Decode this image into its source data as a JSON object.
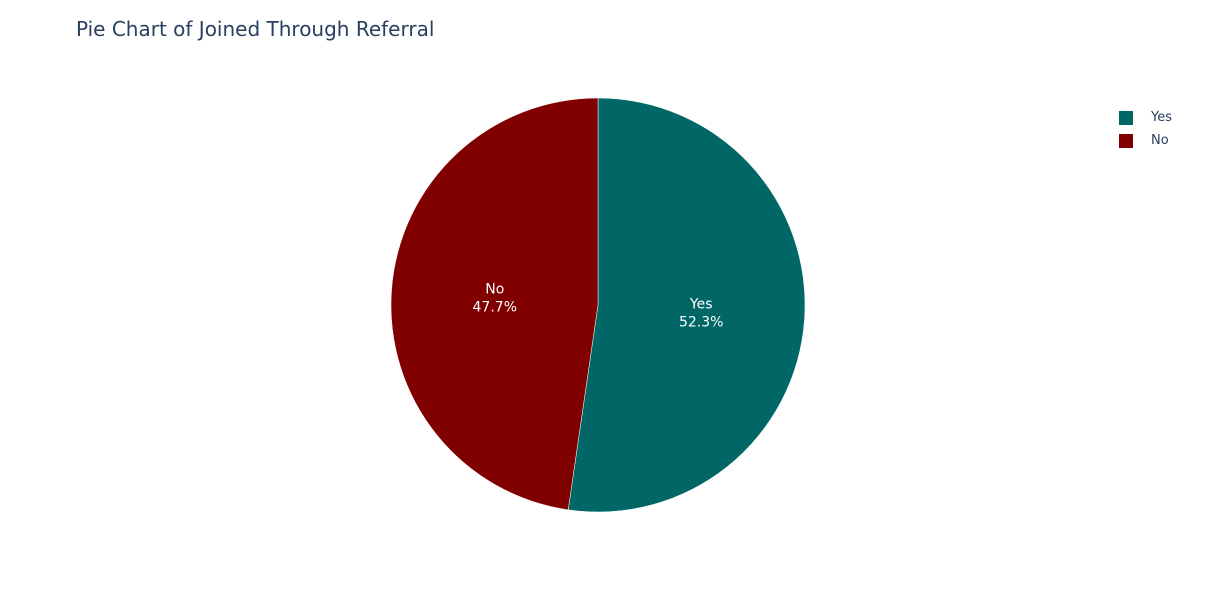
{
  "chart_data": {
    "type": "pie",
    "title": "Pie Chart of Joined Through Referral",
    "slices": [
      {
        "label": "Yes",
        "value": 52.3,
        "percent_label": "52.3%",
        "color": "#006666"
      },
      {
        "label": "No",
        "value": 47.7,
        "percent_label": "47.7%",
        "color": "#800000"
      }
    ],
    "legend_placement": "top-right",
    "direction": "clockwise",
    "start": "top"
  }
}
